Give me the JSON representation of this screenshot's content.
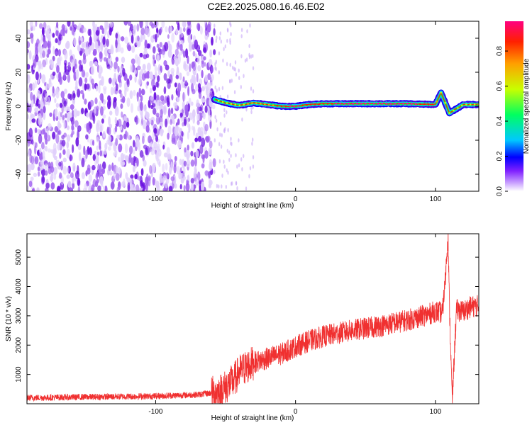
{
  "title": "C2E2.2025.080.16.46.E02",
  "chart_data": [
    {
      "type": "heatmap",
      "xlabel": "Height of straight line (km)",
      "ylabel": "Frequency (Hz)",
      "xlim": [
        -192,
        131
      ],
      "ylim": [
        -50,
        50
      ],
      "x_ticks": [
        -100,
        0,
        100
      ],
      "y_ticks": [
        -40,
        -20,
        0,
        20,
        40
      ],
      "colorbar": {
        "label": "Normalized spectral amplitude",
        "range": [
          0,
          0.97
        ],
        "ticks": [
          0.0,
          0.2,
          0.4,
          0.6,
          0.8
        ],
        "colormap": [
          "#ffffff",
          "#b070ff",
          "#6000d0",
          "#0000ff",
          "#00c8ff",
          "#00ff60",
          "#c8ff00",
          "#ffa000",
          "#ff2000",
          "#ff00a0"
        ]
      },
      "noise_region_x": [
        -192,
        -58
      ],
      "signal": [
        {
          "x": -58,
          "freq": 4,
          "amp": 0.45
        },
        {
          "x": -50,
          "freq": 2,
          "amp": 0.6
        },
        {
          "x": -40,
          "freq": 0.5,
          "amp": 0.55
        },
        {
          "x": -30,
          "freq": 2,
          "amp": 0.7
        },
        {
          "x": -20,
          "freq": 1,
          "amp": 0.6
        },
        {
          "x": -10,
          "freq": 0,
          "amp": 0.8
        },
        {
          "x": 0,
          "freq": 0,
          "amp": 0.85
        },
        {
          "x": 10,
          "freq": 1,
          "amp": 0.7
        },
        {
          "x": 20,
          "freq": 1.5,
          "amp": 0.8
        },
        {
          "x": 40,
          "freq": 1.5,
          "amp": 0.85
        },
        {
          "x": 60,
          "freq": 1.5,
          "amp": 0.85
        },
        {
          "x": 80,
          "freq": 1.5,
          "amp": 0.85
        },
        {
          "x": 100,
          "freq": 1,
          "amp": 0.75
        },
        {
          "x": 104,
          "freq": 8,
          "amp": 0.5
        },
        {
          "x": 110,
          "freq": -4,
          "amp": 0.55
        },
        {
          "x": 120,
          "freq": 1,
          "amp": 0.6
        },
        {
          "x": 131,
          "freq": 1,
          "amp": 0.6
        }
      ]
    },
    {
      "type": "line",
      "xlabel": "Height of straight line (km)",
      "ylabel": "SNR (10 * v/v)",
      "xlim": [
        -192,
        131
      ],
      "ylim": [
        0,
        5800
      ],
      "x_ticks": [
        -100,
        0,
        100
      ],
      "y_ticks": [
        1000,
        2000,
        3000,
        4000,
        5000
      ],
      "color": "#f03030",
      "series": [
        {
          "x": [
            -192,
            -150,
            -100,
            -70,
            -55,
            -45,
            -40,
            -30,
            -20,
            -10,
            0,
            10,
            20,
            40,
            60,
            80,
            95,
            100,
            105,
            107,
            109,
            110,
            112,
            115,
            120,
            125,
            131
          ],
          "values": [
            200,
            230,
            260,
            310,
            400,
            750,
            1100,
            1400,
            1550,
            1700,
            1950,
            2150,
            2300,
            2500,
            2650,
            2850,
            3050,
            3150,
            3100,
            4200,
            5800,
            3300,
            100,
            3200,
            3150,
            3300,
            3350
          ]
        }
      ]
    }
  ]
}
